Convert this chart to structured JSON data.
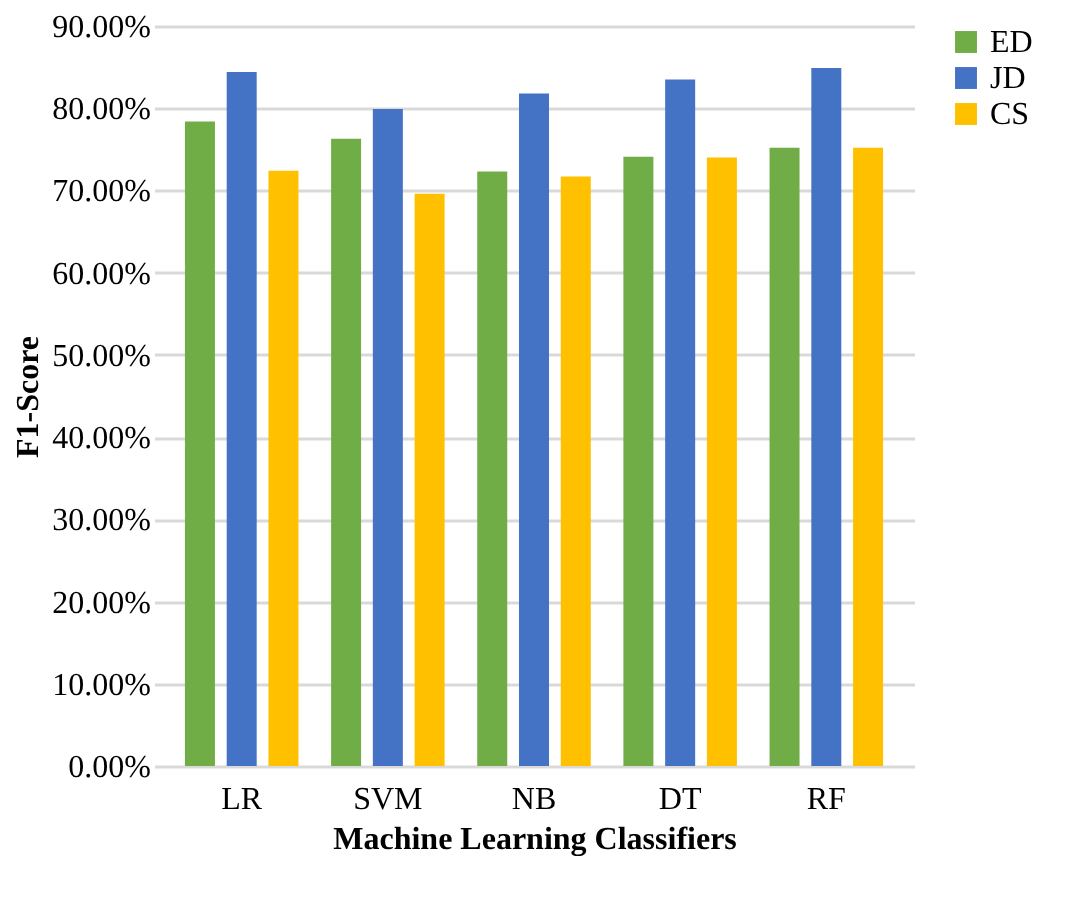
{
  "chart_data": {
    "type": "bar",
    "xlabel": "Machine Learning Classifiers",
    "ylabel": "F1-Score",
    "categories": [
      "LR",
      "SVM",
      "NB",
      "DT",
      "RF"
    ],
    "series": [
      {
        "name": "ED",
        "color": "#70ad47",
        "values": [
          78.4,
          76.3,
          72.3,
          74.1,
          75.2
        ]
      },
      {
        "name": "JD",
        "color": "#4472c4",
        "values": [
          84.4,
          79.9,
          81.8,
          83.5,
          84.9
        ]
      },
      {
        "name": "CS",
        "color": "#ffc000",
        "values": [
          72.4,
          69.6,
          71.7,
          74.0,
          75.2
        ]
      }
    ],
    "ylim": [
      0,
      90
    ],
    "yticks": [
      {
        "value": 0,
        "label": "0.00%"
      },
      {
        "value": 10,
        "label": "10.00%"
      },
      {
        "value": 20,
        "label": "20.00%"
      },
      {
        "value": 30,
        "label": "30.00%"
      },
      {
        "value": 40,
        "label": "40.00%"
      },
      {
        "value": 50,
        "label": "50.00%"
      },
      {
        "value": 60,
        "label": "60.00%"
      },
      {
        "value": 70,
        "label": "70.00%"
      },
      {
        "value": 80,
        "label": "80.00%"
      },
      {
        "value": 90,
        "label": "90.00%"
      }
    ],
    "grid": "y",
    "legend": "right"
  }
}
